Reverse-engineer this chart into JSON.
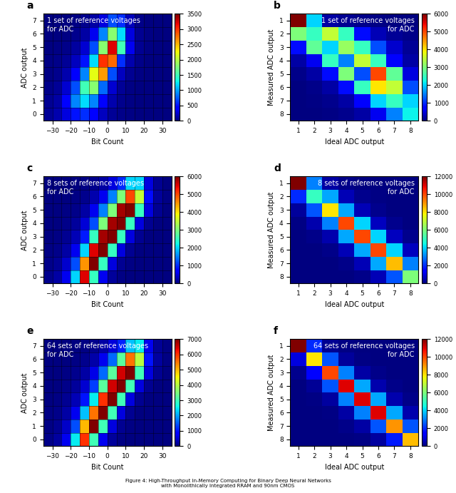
{
  "subplots": [
    {
      "label": "a",
      "type": "heatmap_2d",
      "title": "1 set of reference voltages\nfor ADC",
      "xlabel": "Bit Count",
      "ylabel": "ADC output",
      "xlim": [
        -35,
        35
      ],
      "ylim": [
        -0.5,
        7.5
      ],
      "xticks": [
        -30,
        -20,
        -10,
        0,
        10,
        20,
        30
      ],
      "yticks": [
        0,
        1,
        2,
        3,
        4,
        5,
        6,
        7
      ],
      "cbar_max": 3500,
      "cbar_ticks": [
        0,
        500,
        1000,
        1500,
        2000,
        2500,
        3000,
        3500
      ],
      "x_edges": [
        -35,
        -30,
        -25,
        -20,
        -15,
        -10,
        -5,
        0,
        5,
        10,
        15,
        20,
        25,
        30,
        35
      ],
      "y_edges": [
        -0.5,
        0.5,
        1.5,
        2.5,
        3.5,
        4.5,
        5.5,
        6.5,
        7.5
      ],
      "data": [
        [
          80,
          150,
          300,
          500,
          600,
          400,
          200,
          80,
          30,
          15,
          8,
          5,
          5,
          5
        ],
        [
          60,
          120,
          400,
          900,
          1200,
          900,
          400,
          150,
          50,
          20,
          8,
          5,
          5,
          5
        ],
        [
          40,
          80,
          250,
          700,
          1500,
          1800,
          800,
          250,
          80,
          25,
          8,
          5,
          5,
          5
        ],
        [
          25,
          50,
          150,
          400,
          900,
          2200,
          2600,
          700,
          200,
          60,
          15,
          5,
          5,
          5
        ],
        [
          15,
          30,
          80,
          200,
          500,
          1200,
          3000,
          2800,
          600,
          150,
          30,
          8,
          5,
          5
        ],
        [
          8,
          15,
          40,
          100,
          250,
          700,
          1800,
          3200,
          1500,
          350,
          60,
          15,
          5,
          5
        ],
        [
          5,
          8,
          20,
          50,
          120,
          350,
          900,
          1800,
          1200,
          300,
          60,
          15,
          5,
          5
        ],
        [
          5,
          5,
          8,
          20,
          50,
          120,
          300,
          700,
          600,
          180,
          40,
          10,
          5,
          5
        ]
      ]
    },
    {
      "label": "b",
      "type": "confusion_matrix",
      "title": "1 set of reference voltages\nfor ADC",
      "xlabel": "Ideal ADC output",
      "ylabel": "Measured ADC output",
      "xticks": [
        1,
        2,
        3,
        4,
        5,
        6,
        7,
        8
      ],
      "yticks": [
        1,
        2,
        3,
        4,
        5,
        6,
        7,
        8
      ],
      "cbar_max": 6000,
      "cbar_ticks": [
        0,
        1000,
        2000,
        3000,
        4000,
        5000,
        6000
      ],
      "data": [
        [
          6000,
          2000,
          200,
          100,
          60,
          30,
          15,
          8
        ],
        [
          3000,
          2500,
          3500,
          2500,
          800,
          300,
          120,
          50
        ],
        [
          800,
          2800,
          2000,
          3200,
          2500,
          1200,
          400,
          120
        ],
        [
          200,
          600,
          2500,
          1500,
          3500,
          2500,
          700,
          200
        ],
        [
          60,
          200,
          800,
          3000,
          1200,
          5000,
          2800,
          500
        ],
        [
          15,
          60,
          200,
          800,
          2500,
          4000,
          3500,
          1200
        ],
        [
          8,
          25,
          80,
          200,
          700,
          2000,
          2500,
          2000
        ],
        [
          5,
          10,
          30,
          80,
          200,
          600,
          1500,
          2200
        ]
      ]
    },
    {
      "label": "c",
      "type": "heatmap_2d",
      "title": "8 sets of reference voltages\nfor ADC",
      "xlabel": "Bit Count",
      "ylabel": "ADC output",
      "xlim": [
        -35,
        35
      ],
      "ylim": [
        -0.5,
        7.5
      ],
      "xticks": [
        -30,
        -20,
        -10,
        0,
        10,
        20,
        30
      ],
      "yticks": [
        0,
        1,
        2,
        3,
        4,
        5,
        6,
        7
      ],
      "cbar_max": 6000,
      "cbar_ticks": [
        0,
        1000,
        2000,
        3000,
        4000,
        5000,
        6000
      ],
      "x_edges": [
        -35,
        -30,
        -25,
        -20,
        -15,
        -10,
        -5,
        0,
        5,
        10,
        15,
        20,
        25,
        30,
        35
      ],
      "y_edges": [
        -0.5,
        0.5,
        1.5,
        2.5,
        3.5,
        4.5,
        5.5,
        6.5,
        7.5
      ],
      "data": [
        [
          80,
          200,
          600,
          2000,
          5500,
          2500,
          600,
          150,
          40,
          15,
          5,
          5,
          5,
          5
        ],
        [
          50,
          120,
          400,
          1200,
          4500,
          6000,
          2500,
          500,
          100,
          25,
          5,
          5,
          5,
          5
        ],
        [
          30,
          70,
          200,
          600,
          2000,
          5500,
          6000,
          2500,
          500,
          100,
          20,
          5,
          5,
          5
        ],
        [
          15,
          40,
          100,
          300,
          900,
          2500,
          5800,
          6000,
          2500,
          500,
          100,
          20,
          5,
          5
        ],
        [
          8,
          20,
          50,
          150,
          450,
          1200,
          3000,
          5800,
          6000,
          2500,
          500,
          100,
          20,
          5
        ],
        [
          5,
          10,
          25,
          70,
          200,
          600,
          1500,
          3000,
          5800,
          6000,
          2500,
          500,
          100,
          20
        ],
        [
          5,
          5,
          10,
          30,
          80,
          250,
          600,
          1500,
          3000,
          5000,
          3500,
          800,
          150,
          30
        ],
        [
          5,
          5,
          5,
          10,
          30,
          80,
          200,
          500,
          1000,
          2000,
          2000,
          500,
          100,
          15
        ]
      ]
    },
    {
      "label": "d",
      "type": "confusion_matrix",
      "title": "8 sets of reference voltages\nfor ADC",
      "xlabel": "Ideal ADC output",
      "ylabel": "Measured ADC output",
      "xticks": [
        1,
        2,
        3,
        4,
        5,
        6,
        7,
        8
      ],
      "yticks": [
        1,
        2,
        3,
        4,
        5,
        6,
        7,
        8
      ],
      "cbar_max": 12000,
      "cbar_ticks": [
        0,
        2000,
        4000,
        6000,
        8000,
        10000,
        12000
      ],
      "data": [
        [
          12000,
          3000,
          400,
          100,
          40,
          15,
          8,
          5
        ],
        [
          2000,
          5000,
          3500,
          600,
          150,
          50,
          15,
          5
        ],
        [
          300,
          2500,
          8000,
          3500,
          600,
          150,
          40,
          10
        ],
        [
          80,
          500,
          3000,
          10000,
          4000,
          700,
          150,
          40
        ],
        [
          20,
          100,
          500,
          3500,
          10000,
          4000,
          700,
          150
        ],
        [
          8,
          30,
          120,
          600,
          3500,
          10000,
          4000,
          700
        ],
        [
          5,
          10,
          40,
          120,
          600,
          3500,
          8500,
          3000
        ],
        [
          5,
          5,
          10,
          40,
          120,
          600,
          2500,
          6000
        ]
      ]
    },
    {
      "label": "e",
      "type": "heatmap_2d",
      "title": "64 sets of reference voltages\nfor ADC",
      "xlabel": "Bit Count",
      "ylabel": "ADC output",
      "xlim": [
        -35,
        35
      ],
      "ylim": [
        -0.5,
        7.5
      ],
      "xticks": [
        -30,
        -20,
        -10,
        0,
        10,
        20,
        30
      ],
      "yticks": [
        0,
        1,
        2,
        3,
        4,
        5,
        6,
        7
      ],
      "cbar_max": 7000,
      "cbar_ticks": [
        0,
        1000,
        2000,
        3000,
        4000,
        5000,
        6000,
        7000
      ],
      "x_edges": [
        -35,
        -30,
        -25,
        -20,
        -15,
        -10,
        -5,
        0,
        5,
        10,
        15,
        20,
        25,
        30,
        35
      ],
      "y_edges": [
        -0.5,
        0.5,
        1.5,
        2.5,
        3.5,
        4.5,
        5.5,
        6.5,
        7.5
      ],
      "data": [
        [
          80,
          200,
          700,
          2500,
          6000,
          3000,
          700,
          180,
          50,
          15,
          5,
          5,
          5,
          5
        ],
        [
          50,
          130,
          450,
          1400,
          5000,
          7000,
          3000,
          600,
          120,
          30,
          5,
          5,
          5,
          5
        ],
        [
          30,
          70,
          220,
          700,
          2200,
          5500,
          7000,
          3000,
          600,
          120,
          25,
          5,
          5,
          5
        ],
        [
          15,
          40,
          110,
          350,
          1000,
          2500,
          6000,
          7000,
          3000,
          600,
          120,
          25,
          5,
          5
        ],
        [
          8,
          20,
          55,
          170,
          500,
          1300,
          3200,
          6500,
          7000,
          3000,
          600,
          120,
          25,
          5
        ],
        [
          5,
          10,
          28,
          85,
          240,
          640,
          1600,
          3200,
          6500,
          7000,
          3000,
          600,
          120,
          25
        ],
        [
          5,
          5,
          12,
          35,
          100,
          260,
          700,
          1600,
          3200,
          5500,
          4000,
          1000,
          200,
          40
        ],
        [
          5,
          5,
          5,
          12,
          35,
          90,
          220,
          550,
          1100,
          2200,
          2500,
          700,
          160,
          30
        ]
      ]
    },
    {
      "label": "f",
      "type": "confusion_matrix",
      "title": "64 sets of reference voltages\nfor ADC",
      "xlabel": "Ideal ADC output",
      "ylabel": "Measured ADC output",
      "xticks": [
        1,
        2,
        3,
        4,
        5,
        6,
        7,
        8
      ],
      "yticks": [
        1,
        2,
        3,
        4,
        5,
        6,
        7,
        8
      ],
      "cbar_max": 12000,
      "cbar_ticks": [
        0,
        2000,
        4000,
        6000,
        8000,
        10000,
        12000
      ],
      "data": [
        [
          12000,
          2000,
          200,
          50,
          15,
          5,
          5,
          5
        ],
        [
          1000,
          8000,
          2500,
          300,
          80,
          20,
          5,
          5
        ],
        [
          150,
          1500,
          10000,
          3000,
          400,
          100,
          25,
          5
        ],
        [
          40,
          250,
          2500,
          11000,
          3500,
          500,
          120,
          30
        ],
        [
          10,
          60,
          350,
          3000,
          11000,
          3500,
          500,
          120
        ],
        [
          5,
          15,
          90,
          400,
          3000,
          11000,
          3500,
          500
        ],
        [
          5,
          5,
          25,
          100,
          400,
          2500,
          9000,
          2500
        ],
        [
          5,
          5,
          5,
          25,
          80,
          350,
          1800,
          8500
        ]
      ]
    }
  ],
  "caption": "Figure 4: High-Throughput In-Memory Computing for Binary Deep Neural Networks\nwith Monolithically Integrated RRAM and 90nm CMOS"
}
